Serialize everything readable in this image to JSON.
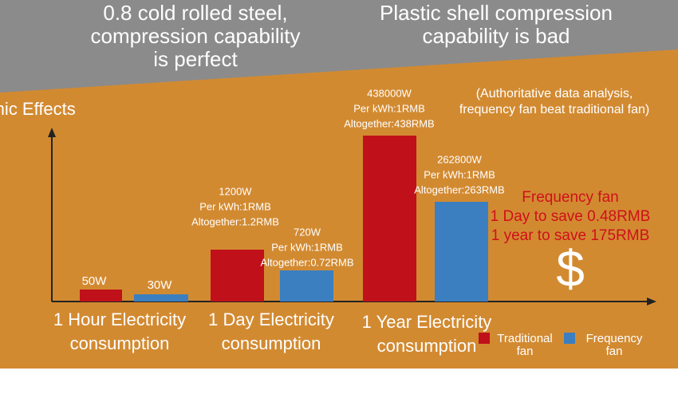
{
  "header": {
    "left": [
      "0.8 cold rolled steel,",
      "compression capability",
      "is perfect"
    ],
    "right": [
      "Plastic shell compression",
      "capability is bad"
    ]
  },
  "title": "Economic Effects",
  "note": [
    "(Authoritative data analysis,",
    "frequency fan beat traditional fan)"
  ],
  "groups": [
    {
      "label": [
        "1 Hour Electricity",
        "consumption"
      ],
      "traditional": [
        "50W"
      ],
      "frequency": [
        "30W"
      ]
    },
    {
      "label": [
        "1 Day  Electricity",
        "consumption"
      ],
      "traditional": [
        "1200W",
        "Per kWh:1RMB",
        "Altogether:1.2RMB"
      ],
      "frequency": [
        "720W",
        "Per kWh:1RMB",
        "Altogether:0.72RMB"
      ]
    },
    {
      "label": [
        "1 Year Electricity",
        "consumption"
      ],
      "traditional": [
        "438000W",
        "Per kWh:1RMB",
        "Altogether:438RMB"
      ],
      "frequency": [
        "262800W",
        "Per kWh:1RMB",
        "Altogether:263RMB"
      ]
    }
  ],
  "savings": [
    "Frequency fan",
    "1 Day to save 0.48RMB",
    "1 year to save 175RMB"
  ],
  "currency_symbol": "$",
  "legend": {
    "traditional": [
      "Traditional",
      "fan"
    ],
    "frequency": [
      "Frequency",
      "fan"
    ]
  }
}
